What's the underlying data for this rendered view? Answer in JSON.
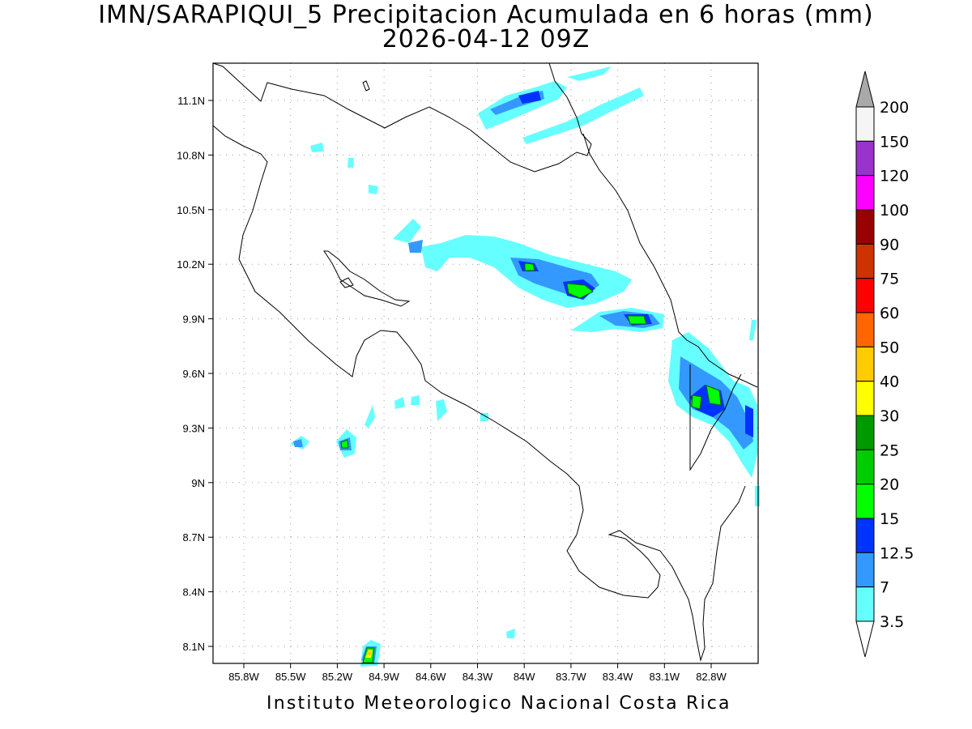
{
  "title": {
    "line1": "IMN/SARAPIQUI_5 Precipitacion Acumulada en 6 horas (mm)",
    "line2": "2026-04-12 09Z"
  },
  "map": {
    "lon_range": [
      -86.1,
      -83.1
    ],
    "lat_range": [
      8.0,
      11.3
    ],
    "lon_ticks": [
      "85.8W",
      "85.5W",
      "85.2W",
      "84.9W",
      "84.6W",
      "84.3W",
      "84W",
      "83.7W",
      "83.4W",
      "83.1W",
      "82.8W"
    ],
    "lat_ticks": [
      "11.1N",
      "10.8N",
      "10.5N",
      "10.2N",
      "9.9N",
      "9.6N",
      "9.3N",
      "9N",
      "8.7N",
      "8.4N",
      "8.1N"
    ],
    "grid": true
  },
  "colorbar": {
    "labels": [
      "3.5",
      "7",
      "12.5",
      "15",
      "20",
      "25",
      "30",
      "40",
      "50",
      "60",
      "75",
      "90",
      "100",
      "120",
      "150",
      "200"
    ],
    "colors": [
      "#ffffff",
      "#66ffff",
      "#3399ff",
      "#0033ff",
      "#00ff00",
      "#00cc00",
      "#009900",
      "#ffff00",
      "#ffcc00",
      "#ff6600",
      "#ff0000",
      "#cc3300",
      "#990000",
      "#ff00ff",
      "#9933cc",
      "#f5f5f5",
      "#a9a9a9"
    ]
  },
  "footer": "Instituto Meteorologico Nacional Costa Rica"
}
